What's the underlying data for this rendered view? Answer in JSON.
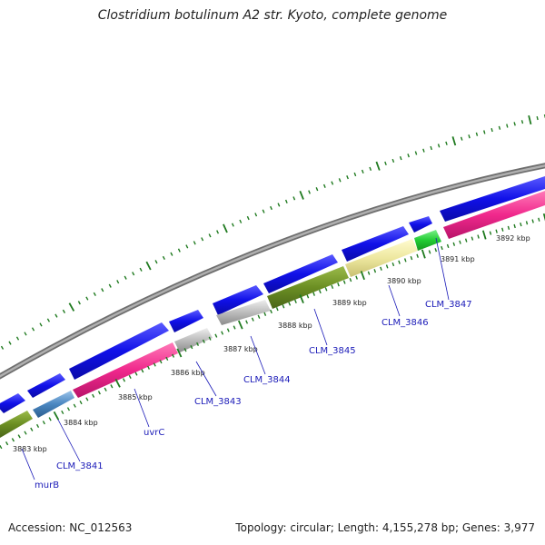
{
  "title": "Clostridium botulinum A2 str. Kyoto, complete genome",
  "accession_text": "Accession: NC_012563",
  "stats_text": "Topology: circular; Length: 4,155,278 bp; Genes: 3,977",
  "colors": {
    "backbone": "#8a8a8a",
    "forward_cds": "#1010e8",
    "tick": "#1f7a1f",
    "label_line": "#1a1ab8",
    "category_olive": "#6b8e23",
    "category_magenta": "#f0288c",
    "category_gray": "#bcbcbc",
    "category_khaki": "#eee8a0",
    "category_green": "#22cc33",
    "category_steelblue": "#4a86c0"
  },
  "kbp_labels": [
    "3883 kbp",
    "3884 kbp",
    "3885 kbp",
    "3886 kbp",
    "3887 kbp",
    "3888 kbp",
    "3889 kbp",
    "3890 kbp",
    "3891 kbp",
    "3892 kbp"
  ],
  "gene_labels": [
    "murB",
    "CLM_3841",
    "uvrC",
    "CLM_3843",
    "CLM_3844",
    "CLM_3845",
    "CLM_3846",
    "CLM_3847"
  ]
}
